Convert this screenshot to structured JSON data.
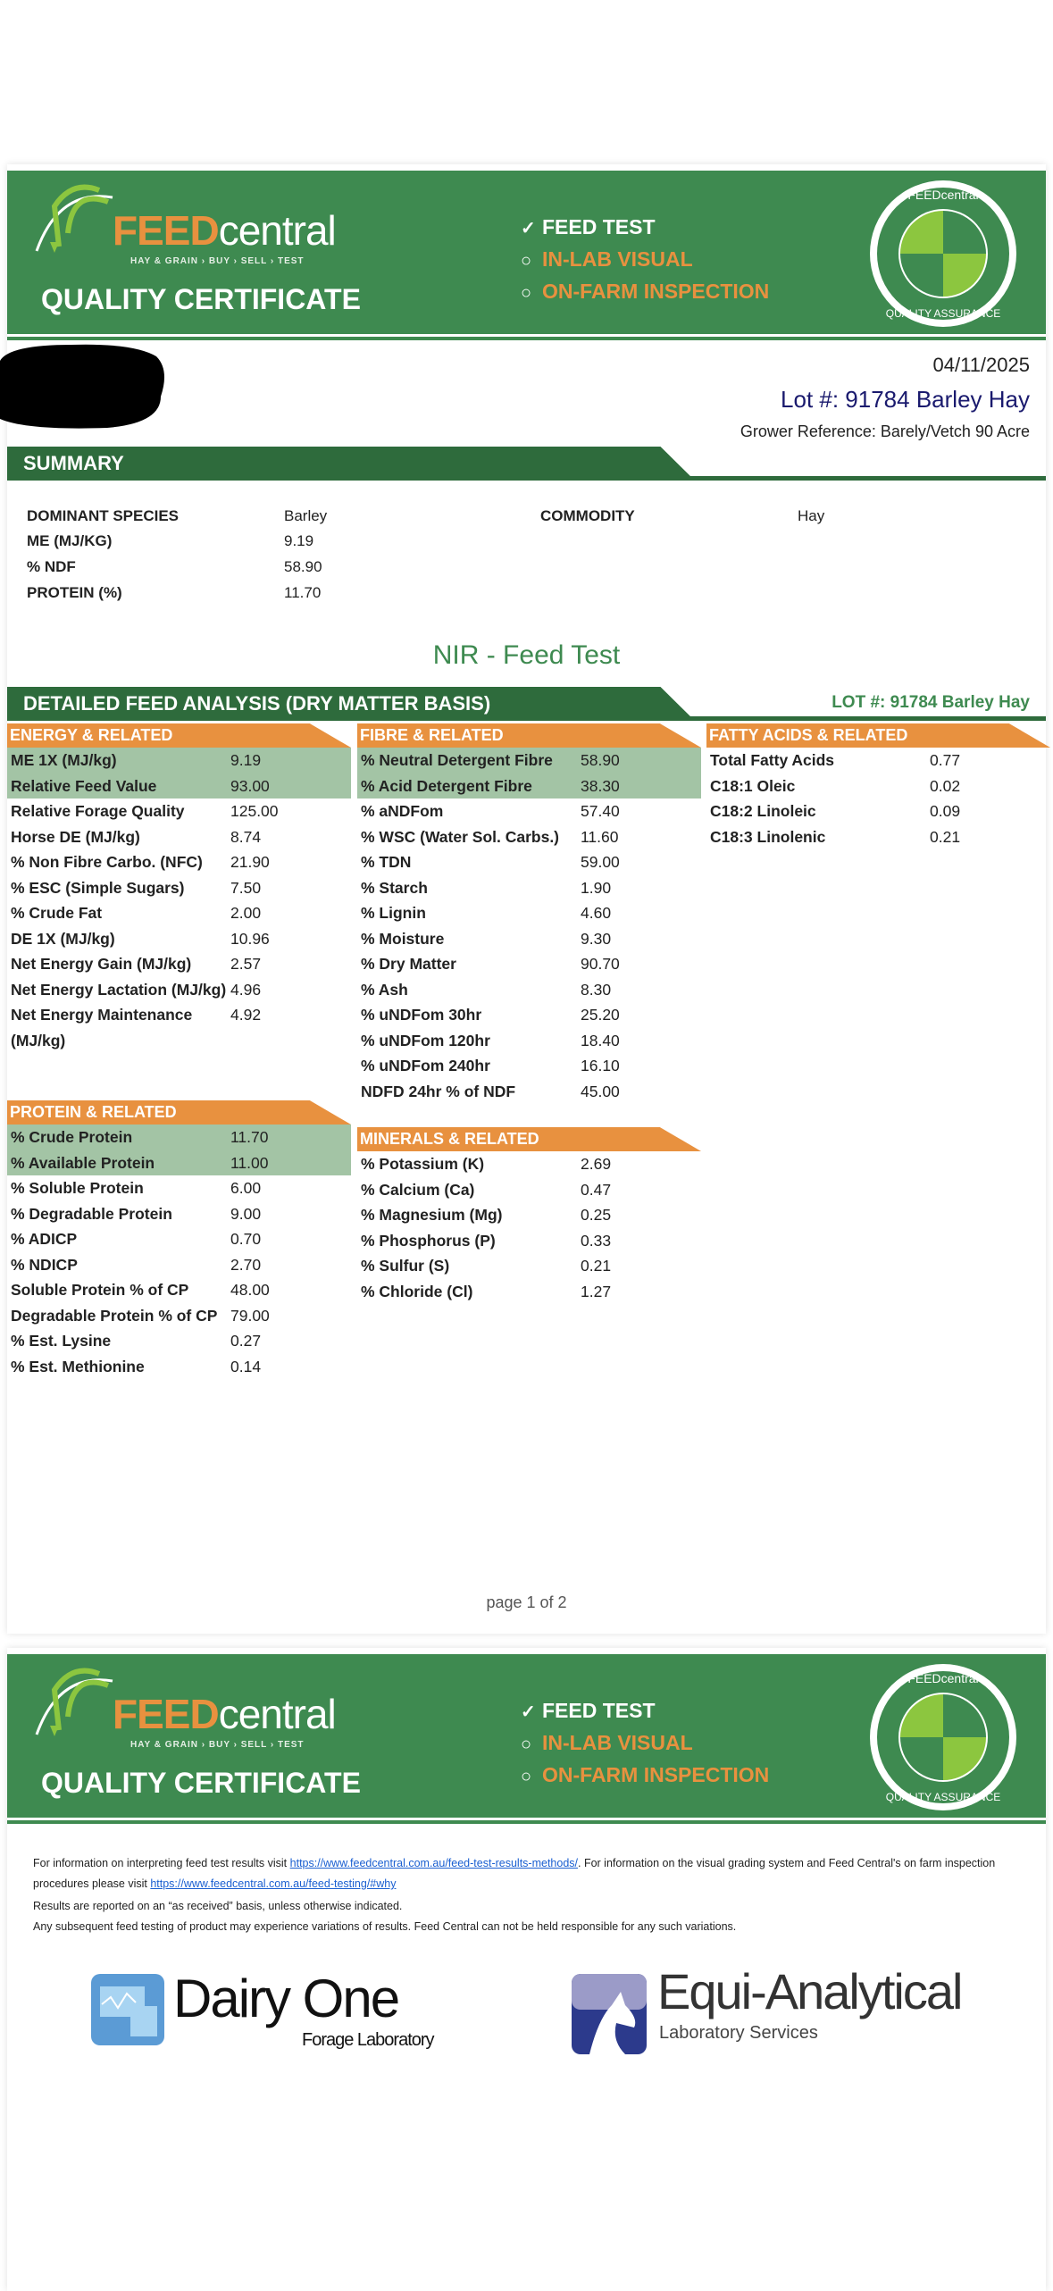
{
  "header": {
    "brand_bold": "FEED",
    "brand_light": "central",
    "tagline": "HAY & GRAIN  ›  BUY  ›  SELL  ›  TEST",
    "title": "QUALITY CERTIFICATE",
    "checks": [
      {
        "label": "FEED TEST",
        "checked": true
      },
      {
        "label": "IN-LAB VISUAL",
        "checked": false
      },
      {
        "label": "ON-FARM INSPECTION",
        "checked": false
      }
    ],
    "seal_top": "FEEDcentral",
    "seal_bottom": "QUALITY ASSURANCE"
  },
  "info": {
    "date": "04/11/2025",
    "lot": "Lot #: 91784 Barley Hay",
    "grower": "Grower Reference: Barely/Vetch 90 Acre"
  },
  "summary": {
    "title": "SUMMARY",
    "rows": [
      {
        "label": "DOMINANT SPECIES",
        "value": "Barley"
      },
      {
        "label": "ME (MJ/KG)",
        "value": "9.19"
      },
      {
        "label": "% NDF",
        "value": "58.90"
      },
      {
        "label": "PROTEIN (%)",
        "value": "11.70"
      }
    ],
    "commodity_label": "COMMODITY",
    "commodity_value": "Hay"
  },
  "nir_title": "NIR - Feed Test",
  "detail": {
    "title": "DETAILED FEED ANALYSIS (DRY MATTER BASIS)",
    "lot": "LOT #: 91784 Barley Hay"
  },
  "sections": {
    "energy": {
      "title": "ENERGY & RELATED",
      "rows": [
        [
          "ME 1X (MJ/kg)",
          "9.19",
          1
        ],
        [
          "Relative Feed Value",
          "93.00",
          1
        ],
        [
          "Relative Forage Quality",
          "125.00",
          0
        ],
        [
          "Horse DE (MJ/kg)",
          "8.74",
          0
        ],
        [
          "% Non Fibre Carbo. (NFC)",
          "21.90",
          0
        ],
        [
          "% ESC (Simple Sugars)",
          "7.50",
          0
        ],
        [
          "% Crude Fat",
          "2.00",
          0
        ],
        [
          "DE 1X (MJ/kg)",
          "10.96",
          0
        ],
        [
          "Net Energy Gain (MJ/kg)",
          "2.57",
          0
        ],
        [
          "Net Energy Lactation (MJ/kg)",
          "4.96",
          0
        ],
        [
          "Net Energy Maintenance (MJ/kg)",
          "4.92",
          0
        ]
      ]
    },
    "fibre": {
      "title": "FIBRE & RELATED",
      "rows": [
        [
          "% Neutral Detergent Fibre",
          "58.90",
          1
        ],
        [
          "% Acid Detergent Fibre",
          "38.30",
          1
        ],
        [
          "% aNDFom",
          "57.40",
          0
        ],
        [
          "% WSC (Water Sol. Carbs.)",
          "11.60",
          0
        ],
        [
          "% TDN",
          "59.00",
          0
        ],
        [
          "% Starch",
          "1.90",
          0
        ],
        [
          "% Lignin",
          "4.60",
          0
        ],
        [
          "% Moisture",
          "9.30",
          0
        ],
        [
          "% Dry Matter",
          "90.70",
          0
        ],
        [
          "% Ash",
          "8.30",
          0
        ],
        [
          "% uNDFom 30hr",
          "25.20",
          0
        ],
        [
          "% uNDFom 120hr",
          "18.40",
          0
        ],
        [
          "% uNDFom 240hr",
          "16.10",
          0
        ],
        [
          "NDFD 24hr % of NDF",
          "45.00",
          0
        ]
      ]
    },
    "fatty": {
      "title": "FATTY ACIDS & RELATED",
      "rows": [
        [
          "Total Fatty Acids",
          "0.77",
          0
        ],
        [
          "C18:1 Oleic",
          "0.02",
          0
        ],
        [
          "C18:2 Linoleic",
          "0.09",
          0
        ],
        [
          "C18:3 Linolenic",
          "0.21",
          0
        ]
      ]
    },
    "protein": {
      "title": "PROTEIN & RELATED",
      "rows": [
        [
          "% Crude Protein",
          "11.70",
          1
        ],
        [
          "% Available Protein",
          "11.00",
          1
        ],
        [
          "% Soluble Protein",
          "6.00",
          0
        ],
        [
          "% Degradable Protein",
          "9.00",
          0
        ],
        [
          "% ADICP",
          "0.70",
          0
        ],
        [
          "% NDICP",
          "2.70",
          0
        ],
        [
          "Soluble Protein % of CP",
          "48.00",
          0
        ],
        [
          "Degradable Protein % of CP",
          "79.00",
          0
        ],
        [
          "% Est. Lysine",
          "0.27",
          0
        ],
        [
          "% Est. Methionine",
          "0.14",
          0
        ]
      ]
    },
    "minerals": {
      "title": "MINERALS & RELATED",
      "rows": [
        [
          "% Potassium (K)",
          "2.69",
          0
        ],
        [
          "% Calcium (Ca)",
          "0.47",
          0
        ],
        [
          "% Magnesium (Mg)",
          "0.25",
          0
        ],
        [
          "% Phosphorus (P)",
          "0.33",
          0
        ],
        [
          "% Sulfur (S)",
          "0.21",
          0
        ],
        [
          "% Chloride (Cl)",
          "1.27",
          0
        ]
      ]
    }
  },
  "page_label": "page 1 of 2",
  "notes": {
    "n1a": "For information on interpreting feed test results visit ",
    "link1": "https://www.feedcentral.com.au/feed-test-results-methods/",
    "n1b": ".  For information on the visual grading system and Feed Central's on farm inspection procedures please visit ",
    "link2": "https://www.feedcentral.com.au/feed-testing/#why",
    "n2": "Results are reported on an “as received” basis, unless otherwise indicated.",
    "n3": "Any subsequent feed testing of product may experience variations of results. Feed Central can not be held responsible for any such variations."
  },
  "labs": {
    "dairy": "Dairy One",
    "dairy_sub": "Forage Laboratory",
    "equi": "Equi-Analytical",
    "equi_sub": "Laboratory Services"
  },
  "colors": {
    "green": "#3e8a50",
    "dark_green": "#2e6b3c",
    "orange": "#e8913f",
    "highlight": "#a3c4a5",
    "navy": "#1a1a6e"
  }
}
